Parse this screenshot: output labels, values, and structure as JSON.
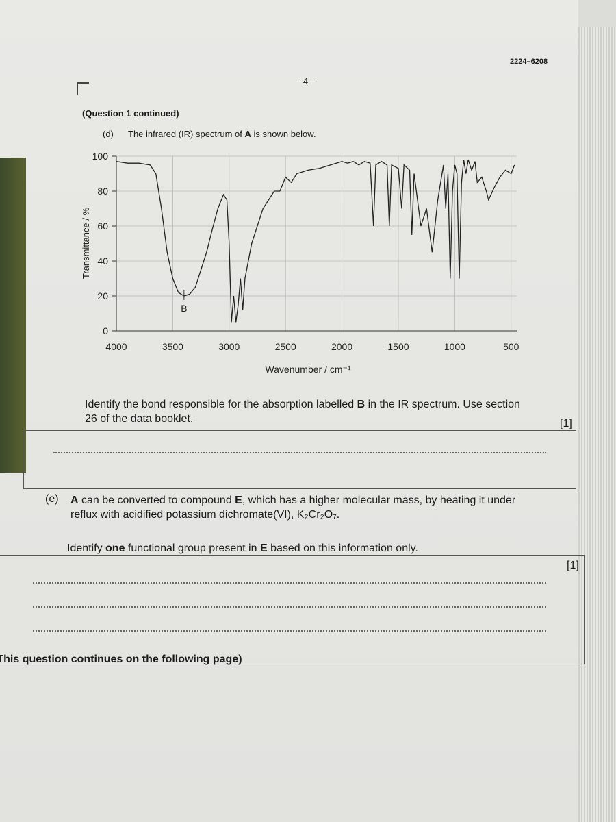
{
  "header": {
    "code": "2224–6208",
    "page": "– 4 –"
  },
  "continued": "(Question 1 continued)",
  "part_d": {
    "label": "(d)",
    "intro": [
      "The infrared (IR) spectrum of ",
      {
        "bold": "A"
      },
      " is shown below."
    ],
    "question": [
      "Identify the bond responsible for the absorption labelled ",
      {
        "bold": "B"
      },
      " in the IR spectrum. Use section 26 of the data booklet."
    ],
    "marks": "[1]"
  },
  "chart_data": {
    "type": "line",
    "x_label": "Wavenumber / cm⁻¹",
    "y_label": "Transmittance / %",
    "xlim": [
      4000,
      450
    ],
    "ylim": [
      0,
      100
    ],
    "xticks": [
      4000,
      3500,
      3000,
      2500,
      2000,
      1500,
      1000,
      500
    ],
    "yticks": [
      0,
      20,
      40,
      60,
      80,
      100
    ],
    "grid": true,
    "color": "#222222",
    "annotation": {
      "text": "B",
      "x": 3400
    },
    "x": [
      4000,
      3900,
      3800,
      3700,
      3650,
      3600,
      3550,
      3500,
      3450,
      3400,
      3350,
      3300,
      3250,
      3200,
      3150,
      3100,
      3050,
      3020,
      3000,
      2980,
      2960,
      2940,
      2920,
      2900,
      2880,
      2860,
      2800,
      2700,
      2600,
      2550,
      2500,
      2450,
      2400,
      2300,
      2200,
      2100,
      2000,
      1950,
      1900,
      1850,
      1800,
      1750,
      1720,
      1700,
      1650,
      1600,
      1580,
      1560,
      1500,
      1470,
      1450,
      1400,
      1380,
      1360,
      1300,
      1250,
      1200,
      1150,
      1100,
      1080,
      1060,
      1040,
      1020,
      1000,
      980,
      960,
      940,
      920,
      900,
      880,
      850,
      820,
      800,
      760,
      720,
      700,
      650,
      600,
      550,
      500,
      470
    ],
    "y": [
      97,
      96,
      96,
      95,
      90,
      70,
      45,
      30,
      22,
      20,
      21,
      25,
      35,
      45,
      58,
      70,
      78,
      75,
      50,
      5,
      20,
      5,
      15,
      30,
      12,
      30,
      50,
      70,
      80,
      80,
      88,
      85,
      90,
      92,
      93,
      95,
      97,
      96,
      97,
      95,
      97,
      96,
      60,
      95,
      97,
      95,
      60,
      95,
      93,
      70,
      95,
      92,
      55,
      90,
      60,
      70,
      45,
      75,
      95,
      70,
      90,
      30,
      80,
      95,
      90,
      30,
      85,
      98,
      90,
      98,
      92,
      97,
      85,
      88,
      80,
      75,
      82,
      88,
      92,
      90,
      95
    ]
  },
  "part_e": {
    "label": "(e)",
    "statement": [
      {
        "bold": "A"
      },
      " can be converted to compound ",
      {
        "bold": "E"
      },
      ", which has a higher molecular mass, by heating it under reflux with acidified potassium dichromate(VI), K₂Cr₂O₇."
    ],
    "question": [
      "Identify ",
      {
        "bold": "one"
      },
      " functional group present in ",
      {
        "bold": "E"
      },
      " based on this information only."
    ],
    "marks": "[1]"
  },
  "footer": "(This question continues on the following page)"
}
